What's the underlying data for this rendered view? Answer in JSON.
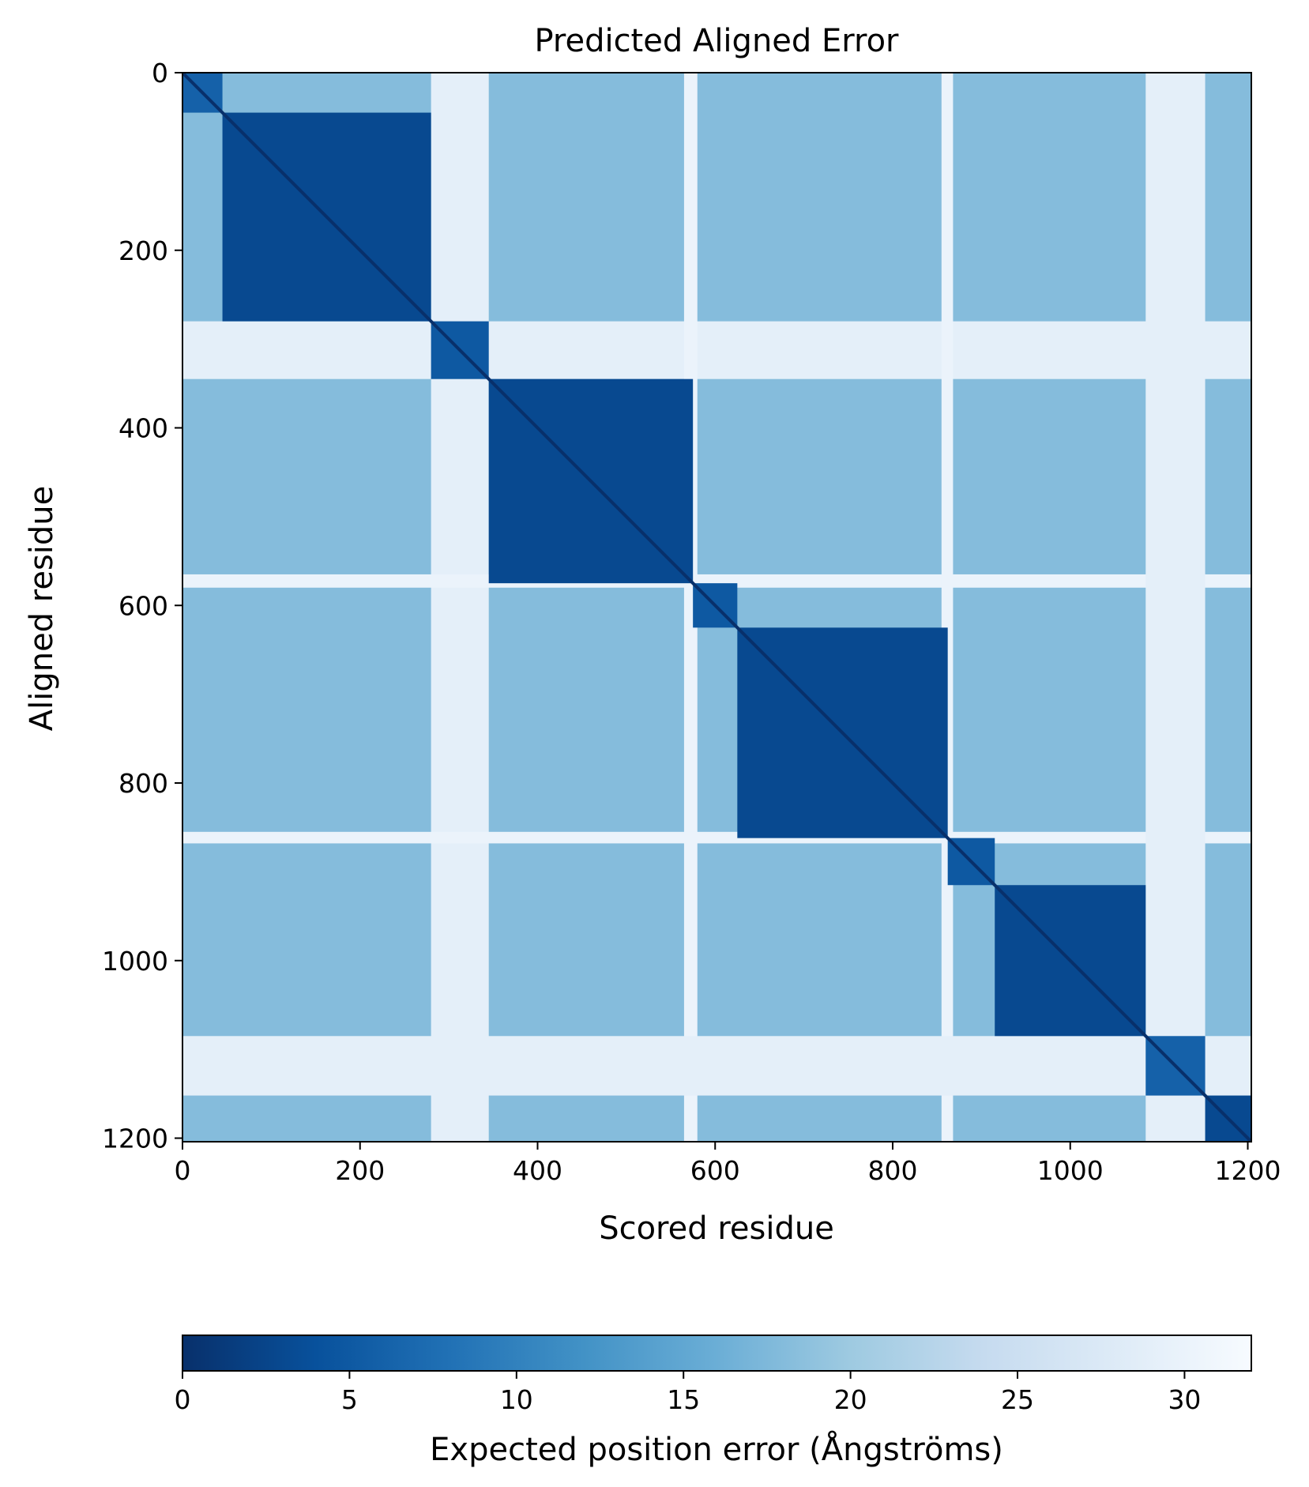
{
  "chart_data": {
    "type": "heatmap",
    "title": "Predicted Aligned Error",
    "xlabel": "Scored residue",
    "ylabel": "Aligned residue",
    "n_residues": 1204,
    "xlim": [
      0,
      1204
    ],
    "ylim": [
      1204,
      0
    ],
    "x_ticks": [
      0,
      200,
      400,
      600,
      800,
      1000,
      1200
    ],
    "y_ticks": [
      0,
      200,
      400,
      600,
      800,
      1000,
      1200
    ],
    "colorbar": {
      "label": "Expected position error (Ångströms)",
      "range": [
        0,
        32
      ],
      "ticks": [
        0,
        5,
        10,
        15,
        20,
        25,
        30
      ],
      "colormap": [
        "#08306b",
        "#08519c",
        "#2171b5",
        "#4292c6",
        "#6baed6",
        "#9ecae1",
        "#c6dbef",
        "#deebf7",
        "#f7fbff"
      ],
      "orientation": "horizontal",
      "placement": "bottom"
    },
    "domains": [
      {
        "start": 0,
        "end": 45,
        "error": 6
      },
      {
        "start": 45,
        "end": 280,
        "error": 3
      },
      {
        "start": 280,
        "end": 345,
        "error": 5
      },
      {
        "start": 345,
        "end": 575,
        "error": 3
      },
      {
        "start": 575,
        "end": 625,
        "error": 5
      },
      {
        "start": 625,
        "end": 862,
        "error": 3
      },
      {
        "start": 862,
        "end": 915,
        "error": 5
      },
      {
        "start": 915,
        "end": 1085,
        "error": 3
      },
      {
        "start": 1085,
        "end": 1152,
        "error": 6
      },
      {
        "start": 1152,
        "end": 1204,
        "error": 3
      }
    ],
    "flexible_regions": [
      {
        "start": 280,
        "end": 345,
        "error": 29
      },
      {
        "start": 565,
        "end": 580,
        "error": 30
      },
      {
        "start": 855,
        "end": 868,
        "error": 30
      },
      {
        "start": 1085,
        "end": 1152,
        "error": 29
      }
    ],
    "background_error": 18
  }
}
